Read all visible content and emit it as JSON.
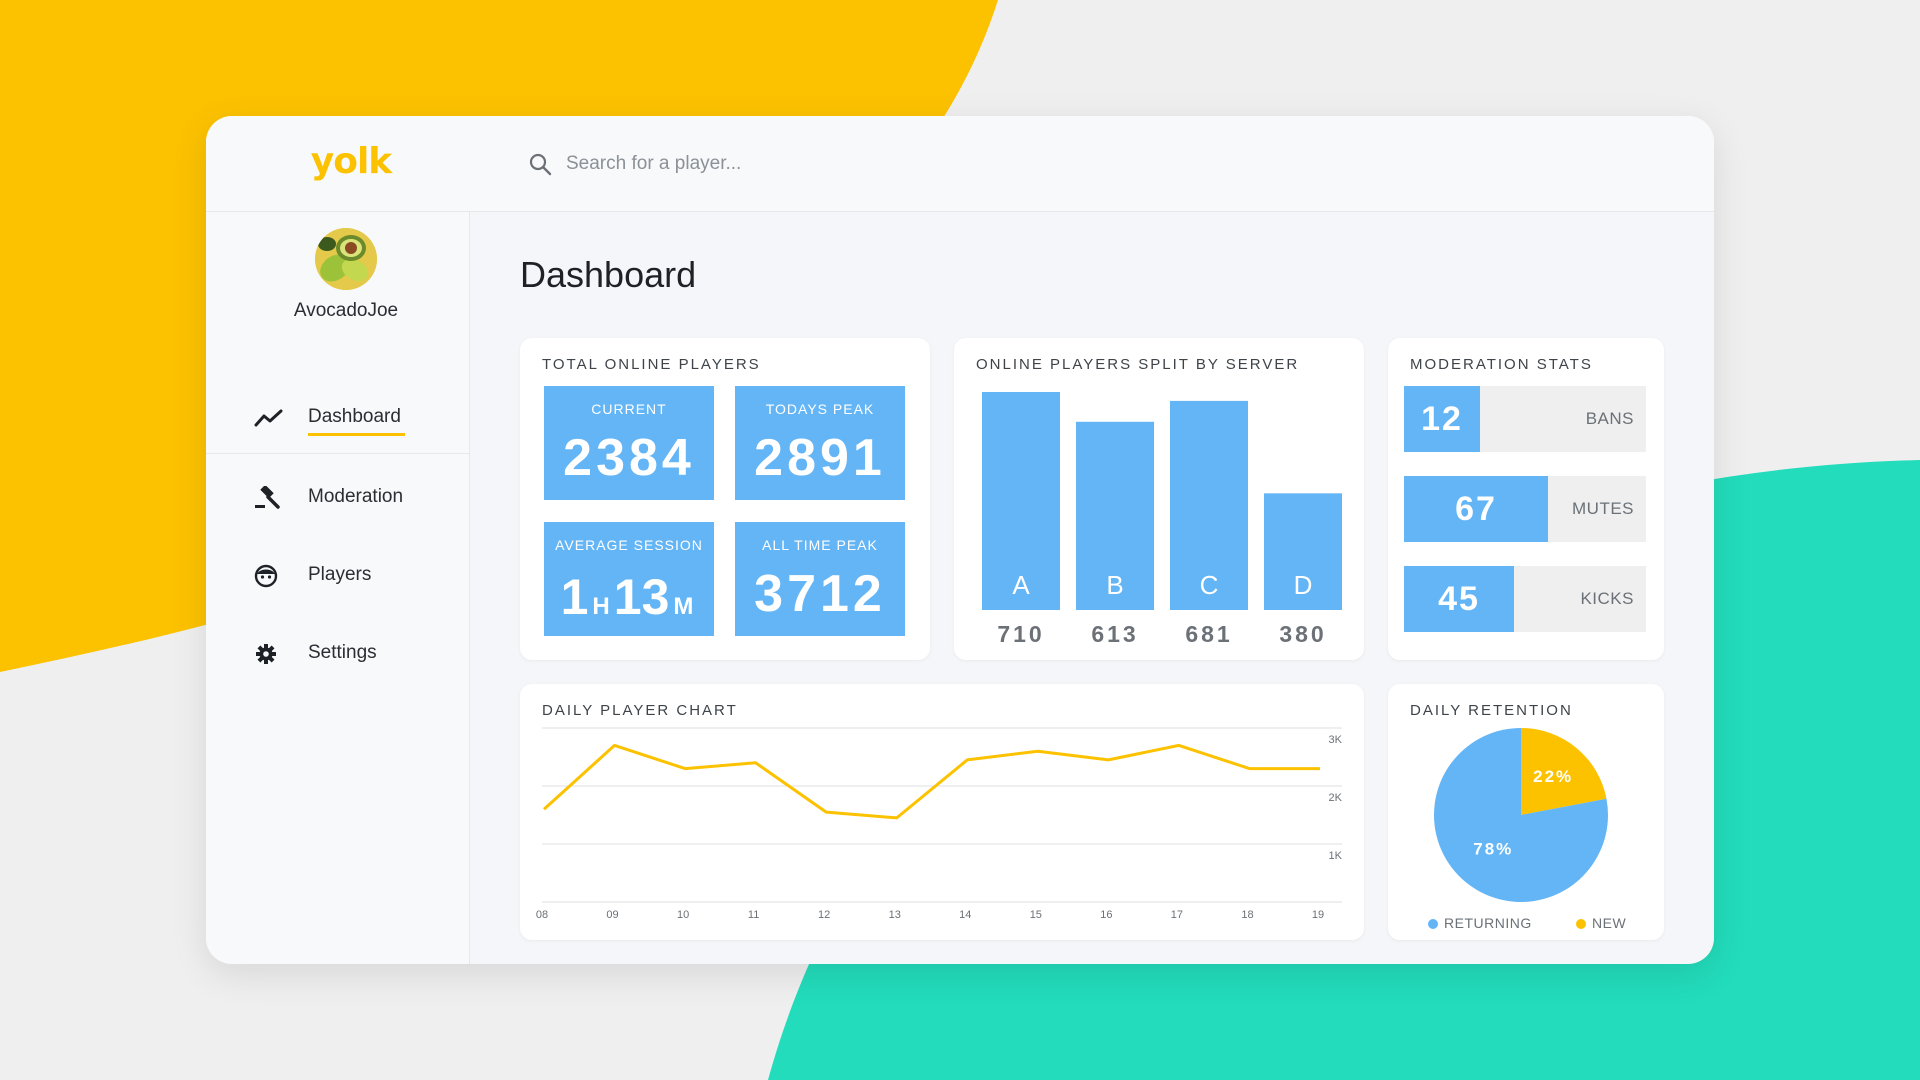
{
  "colors": {
    "accent_yellow": "#fcc200",
    "accent_blue": "#64b5f6",
    "accent_teal": "#22dcbb",
    "background": "#efefef"
  },
  "app": {
    "logo_text": "yolk",
    "search": {
      "placeholder": "Search for a player..."
    }
  },
  "user": {
    "name": "AvocadoJoe"
  },
  "sidebar": {
    "items": [
      {
        "label": "Dashboard",
        "icon": "trend-line-icon",
        "active": true
      },
      {
        "label": "Moderation",
        "icon": "gavel-icon",
        "active": false
      },
      {
        "label": "Players",
        "icon": "face-icon",
        "active": false
      },
      {
        "label": "Settings",
        "icon": "gear-icon",
        "active": false
      }
    ]
  },
  "main": {
    "title": "Dashboard"
  },
  "total_online": {
    "title": "TOTAL ONLINE PLAYERS",
    "current": {
      "label": "CURRENT",
      "value": "2384"
    },
    "todays_peak": {
      "label": "TODAYS PEAK",
      "value": "2891"
    },
    "average_session": {
      "label": "AVERAGE SESSION",
      "hours": "1",
      "hours_unit": "H",
      "minutes": "13",
      "minutes_unit": "M"
    },
    "all_time_peak": {
      "label": "ALL TIME PEAK",
      "value": "3712"
    }
  },
  "moderation": {
    "title": "MODERATION STATS",
    "stats": [
      {
        "value": "12",
        "label": "BANS"
      },
      {
        "value": "67",
        "label": "MUTES"
      },
      {
        "value": "45",
        "label": "KICKS"
      }
    ]
  },
  "chart_data": [
    {
      "type": "bar",
      "title": "ONLINE PLAYERS SPLIT BY SERVER",
      "categories": [
        "A",
        "B",
        "C",
        "D"
      ],
      "values": [
        710,
        613,
        681,
        380
      ],
      "value_labels": [
        "710",
        "613",
        "681",
        "380"
      ],
      "ylim": [
        0,
        710
      ],
      "grid": false
    },
    {
      "type": "line",
      "title": "DAILY PLAYER CHART",
      "x": [
        "08",
        "09",
        "10",
        "11",
        "12",
        "13",
        "14",
        "15",
        "16",
        "17",
        "18",
        "19"
      ],
      "values": [
        1600,
        2700,
        2300,
        2400,
        1550,
        1450,
        2450,
        2600,
        2450,
        2700,
        2300,
        2300
      ],
      "y_ticks": [
        {
          "value": 3000,
          "label": "3K"
        },
        {
          "value": 2000,
          "label": "2K"
        },
        {
          "value": 1000,
          "label": "1K"
        }
      ],
      "ylim": [
        0,
        3000
      ],
      "grid": true,
      "line_color": "#fcc200"
    },
    {
      "type": "pie",
      "title": "DAILY RETENTION",
      "slices": [
        {
          "name": "RETURNING",
          "value": 78,
          "label": "78%",
          "color": "#64b5f6"
        },
        {
          "name": "NEW",
          "value": 22,
          "label": "22%",
          "color": "#fcc200"
        }
      ],
      "legend": "bottom"
    }
  ]
}
